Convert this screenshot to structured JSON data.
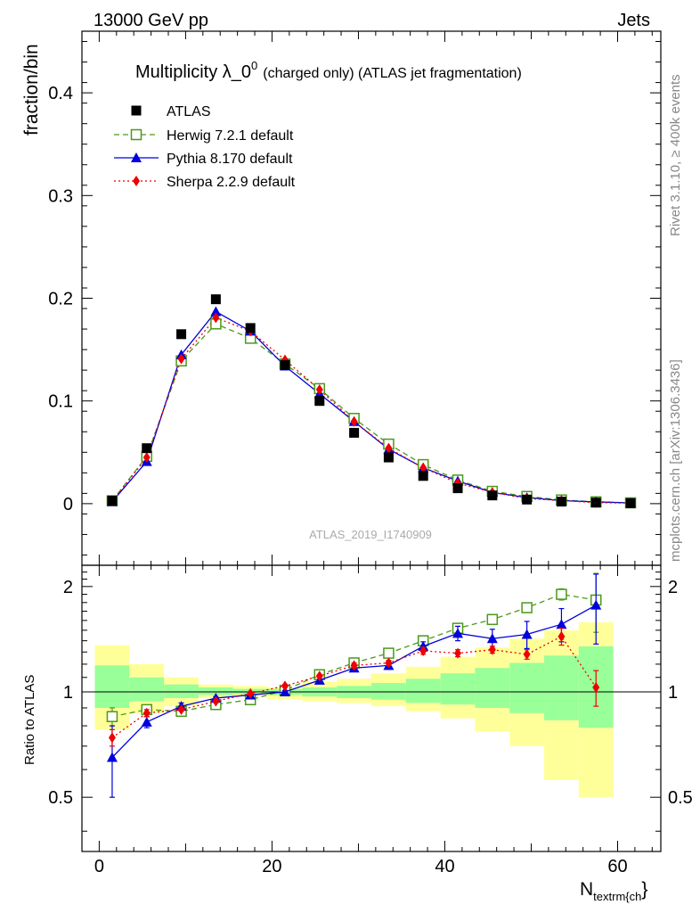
{
  "header": {
    "left": "13000 GeV pp",
    "right": "Jets"
  },
  "side_labels": {
    "rivet": "Rivet 3.1.10, ≥ 400k events",
    "mcplots": "mcplots.cern.ch [arXiv:1306.3436]"
  },
  "title": {
    "main": "Multiplicity λ_0",
    "sup": "0",
    "sub": "(charged only) (ATLAS jet fragmentation)"
  },
  "watermark": "ATLAS_2019_I1740909",
  "chart_data": [
    {
      "type": "scatter",
      "panel": "main",
      "ylabel": "fraction/bin",
      "xlim": [
        -2,
        65
      ],
      "ylim": [
        -0.06,
        0.46
      ],
      "yticks": [
        0,
        0.1,
        0.2,
        0.3,
        0.4
      ],
      "ytick_labels": [
        "0",
        "0.1",
        "0.2",
        "0.3",
        "0.4"
      ],
      "x": [
        1.5,
        5.5,
        9.5,
        13.5,
        17.5,
        21.5,
        25.5,
        29.5,
        33.5,
        37.5,
        41.5,
        45.5,
        49.5,
        53.5,
        57.5,
        61.5
      ],
      "series": [
        {
          "name": "ATLAS",
          "color": "#000000",
          "marker": "square",
          "line": "none",
          "values": [
            0.003,
            0.054,
            0.165,
            0.199,
            0.171,
            0.135,
            0.1,
            0.069,
            0.045,
            0.027,
            0.015,
            0.008,
            0.004,
            0.002,
            0.001,
            0.0005
          ]
        },
        {
          "name": "Herwig 7.2.1 default",
          "color": "#4a9a19",
          "marker": "open-square",
          "line": "dashed",
          "values": [
            0.0028,
            0.046,
            0.139,
            0.175,
            0.161,
            0.136,
            0.112,
            0.083,
            0.058,
            0.038,
            0.023,
            0.012,
            0.007,
            0.0036,
            0.0018,
            0.0008
          ]
        },
        {
          "name": "Pythia 8.170 default",
          "color": "#0000dd",
          "marker": "triangle",
          "line": "solid",
          "values": [
            0.002,
            0.041,
            0.145,
            0.187,
            0.168,
            0.134,
            0.107,
            0.08,
            0.053,
            0.035,
            0.022,
            0.011,
            0.006,
            0.003,
            0.0017,
            0.0008
          ]
        },
        {
          "name": "Sherpa 2.2.9 default",
          "color": "#ee0000",
          "marker": "diamond",
          "line": "dotted",
          "values": [
            0.0023,
            0.045,
            0.141,
            0.181,
            0.168,
            0.14,
            0.111,
            0.08,
            0.054,
            0.035,
            0.02,
            0.011,
            0.005,
            0.003,
            0.001,
            0.0005
          ]
        }
      ]
    },
    {
      "type": "scatter",
      "panel": "ratio",
      "ylabel": "Ratio to ATLAS",
      "xlabel": "N",
      "xlabel_sub": "textrm{ch",
      "xlabel_suffix": "}",
      "xlim": [
        -2,
        65
      ],
      "ylim": [
        0.35,
        2.3
      ],
      "yticks": [
        0.5,
        1,
        2
      ],
      "ytick_labels": [
        "0.5",
        "1",
        "2"
      ],
      "xticks": [
        0,
        20,
        40,
        60
      ],
      "xtick_labels": [
        "0",
        "20",
        "40",
        "60"
      ],
      "bands": {
        "edges": [
          -0.5,
          3.5,
          7.5,
          11.5,
          15.5,
          19.5,
          23.5,
          27.5,
          31.5,
          35.5,
          39.5,
          43.5,
          47.5,
          51.5,
          55.5,
          59.5
        ],
        "yellow_color": "#ffff99",
        "green_color": "#99ff99",
        "yellow_low": [
          0.78,
          0.87,
          0.91,
          0.96,
          0.97,
          0.95,
          0.94,
          0.93,
          0.91,
          0.88,
          0.84,
          0.77,
          0.7,
          0.56,
          0.5
        ],
        "yellow_high": [
          1.36,
          1.2,
          1.1,
          1.05,
          1.04,
          1.03,
          1.07,
          1.09,
          1.13,
          1.18,
          1.26,
          1.34,
          1.42,
          1.5,
          1.58
        ],
        "green_low": [
          0.9,
          0.94,
          0.96,
          0.98,
          0.985,
          0.98,
          0.97,
          0.96,
          0.95,
          0.93,
          0.92,
          0.9,
          0.87,
          0.83,
          0.79
        ],
        "green_high": [
          1.19,
          1.1,
          1.05,
          1.03,
          1.02,
          1.02,
          1.03,
          1.04,
          1.06,
          1.09,
          1.13,
          1.17,
          1.21,
          1.27,
          1.35
        ]
      },
      "series": [
        {
          "name": "Herwig 7.2.1 default",
          "color": "#4a9a19",
          "marker": "open-square",
          "line": "dashed",
          "values": [
            0.85,
            0.89,
            0.88,
            0.92,
            0.95,
            1.01,
            1.12,
            1.21,
            1.29,
            1.4,
            1.52,
            1.61,
            1.74,
            1.9,
            1.83
          ],
          "err": [
            0.05,
            0.02,
            0.01,
            0.01,
            0.01,
            0.01,
            0.01,
            0.02,
            0.02,
            0.03,
            0.04,
            0.04,
            0.05,
            0.07,
            0.35
          ]
        },
        {
          "name": "Pythia 8.170 default",
          "color": "#0000dd",
          "marker": "triangle",
          "line": "solid",
          "values": [
            0.65,
            0.82,
            0.91,
            0.96,
            0.98,
            1.0,
            1.08,
            1.17,
            1.19,
            1.35,
            1.47,
            1.42,
            1.46,
            1.56,
            1.77
          ],
          "err": [
            0.15,
            0.03,
            0.02,
            0.01,
            0.01,
            0.01,
            0.02,
            0.02,
            0.03,
            0.04,
            0.07,
            0.09,
            0.13,
            0.17,
            0.4
          ]
        },
        {
          "name": "Sherpa 2.2.9 default",
          "color": "#ee0000",
          "marker": "diamond",
          "line": "dotted",
          "values": [
            0.74,
            0.87,
            0.89,
            0.94,
            0.99,
            1.04,
            1.11,
            1.19,
            1.21,
            1.31,
            1.29,
            1.32,
            1.28,
            1.44,
            1.03
          ],
          "err": [
            0.04,
            0.02,
            0.01,
            0.01,
            0.01,
            0.01,
            0.01,
            0.02,
            0.02,
            0.03,
            0.03,
            0.03,
            0.04,
            0.08,
            0.12
          ]
        }
      ]
    }
  ]
}
